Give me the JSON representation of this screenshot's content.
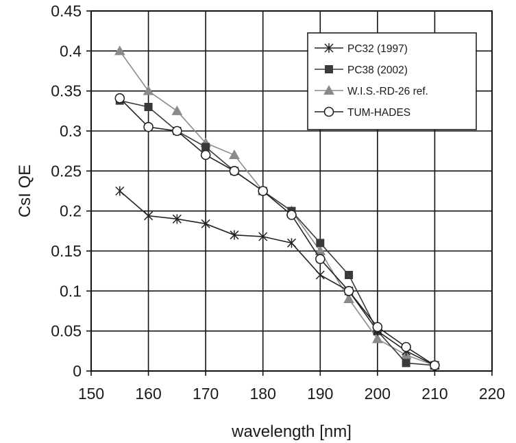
{
  "chart_data": {
    "type": "line",
    "xlabel": "wavelength [nm]",
    "ylabel": "CsI QE",
    "xlim": [
      150,
      220
    ],
    "ylim": [
      0,
      0.45
    ],
    "xticks": [
      "150",
      "160",
      "170",
      "180",
      "190",
      "200",
      "210",
      "220"
    ],
    "yticks": [
      "0",
      "0.05",
      "0.1",
      "0.15",
      "0.2",
      "0.25",
      "0.3",
      "0.35",
      "0.4",
      "0.45"
    ],
    "grid": true,
    "legend_position": "top-right",
    "series": [
      {
        "name": "PC32 (1997)",
        "marker": "star",
        "color": "#222222",
        "x": [
          155,
          160,
          165,
          170,
          175,
          180,
          185,
          190,
          195,
          200,
          205,
          210
        ],
        "y": [
          0.225,
          0.194,
          0.19,
          0.184,
          0.17,
          0.168,
          0.16,
          0.12,
          0.1,
          0.05,
          0.025,
          0.007
        ]
      },
      {
        "name": "PC38 (2002)",
        "marker": "square",
        "color": "#3a3a3a",
        "x": [
          155,
          160,
          165,
          170,
          175,
          180,
          185,
          190,
          195,
          200,
          205,
          210
        ],
        "y": [
          0.338,
          0.33,
          0.3,
          0.28,
          0.25,
          0.225,
          0.2,
          0.16,
          0.12,
          0.05,
          0.01,
          0.007
        ]
      },
      {
        "name": "W.I.S.-RD-26 ref.",
        "marker": "triangle",
        "color": "#8a8a8a",
        "x": [
          155,
          160,
          165,
          170,
          175,
          180,
          185,
          190,
          195,
          200,
          205,
          210
        ],
        "y": [
          0.4,
          0.35,
          0.325,
          0.285,
          0.27,
          0.225,
          0.2,
          0.15,
          0.09,
          0.04,
          0.02,
          0.007
        ]
      },
      {
        "name": "TUM-HADES",
        "marker": "circle",
        "color": "#222222",
        "x": [
          155,
          160,
          165,
          170,
          175,
          180,
          185,
          190,
          195,
          200,
          205,
          210
        ],
        "y": [
          0.341,
          0.305,
          0.3,
          0.27,
          0.25,
          0.225,
          0.195,
          0.14,
          0.1,
          0.055,
          0.03,
          0.007
        ]
      }
    ]
  }
}
